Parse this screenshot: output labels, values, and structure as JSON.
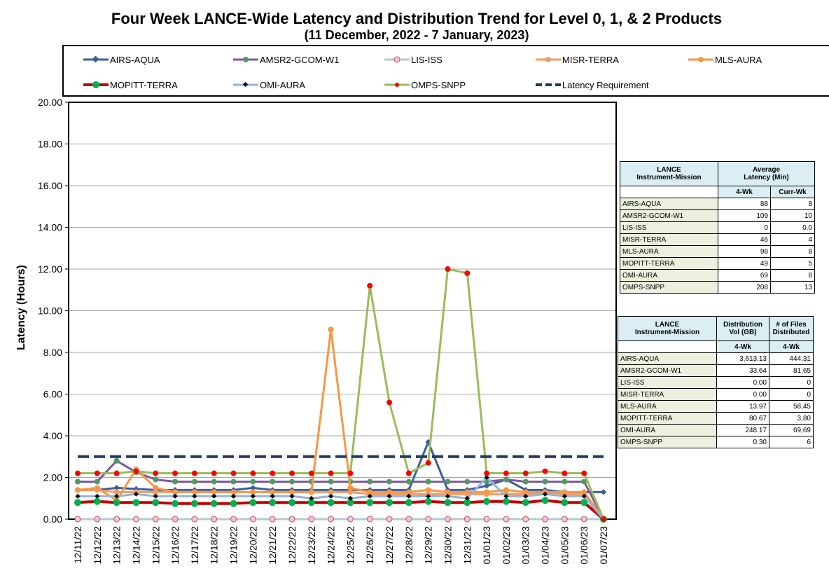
{
  "title": "Four Week LANCE-Wide Latency and Distribution Trend for Level 0, 1, & 2 Products",
  "subtitle": "(11  December,  2022  -  7  January, 2023)",
  "legend": [
    {
      "name": "AIRS-AQUA",
      "color": "#3a5f9a",
      "marker": "diamond"
    },
    {
      "name": "AMSR2-GCOM-W1",
      "color": "#7f58a2",
      "marker": "circle"
    },
    {
      "name": "LIS-ISS",
      "color": "#b3c7e6",
      "marker": "circle-pink"
    },
    {
      "name": "MISR-TERRA",
      "color": "#f49b5e",
      "marker": "circle"
    },
    {
      "name": "MLS-AURA",
      "color": "#f79646",
      "marker": "circle"
    },
    {
      "name": "MOPITT-TERRA",
      "color": "#c00000",
      "marker": "circle-green"
    },
    {
      "name": "OMI-AURA",
      "color": "#95b3d7",
      "marker": "diamond-black"
    },
    {
      "name": "OMPS-SNPP",
      "color": "#9bbb59",
      "marker": "dot-red"
    },
    {
      "name": "Latency Requirement",
      "color": "#1f3864",
      "marker": "dash"
    }
  ],
  "chart_data": {
    "type": "line",
    "title": "Four Week LANCE-Wide Latency and Distribution Trend for Level 0, 1, & 2 Products",
    "ylabel": "Latency (Hours)",
    "ylim": [
      0,
      20
    ],
    "yticks": [
      "0.00",
      "2.00",
      "4.00",
      "6.00",
      "8.00",
      "10.00",
      "12.00",
      "14.00",
      "16.00",
      "18.00",
      "20.00"
    ],
    "categories": [
      "12/11/22",
      "12/12/22",
      "12/13/22",
      "12/14/22",
      "12/15/22",
      "12/16/22",
      "12/17/22",
      "12/18/22",
      "12/19/22",
      "12/20/22",
      "12/21/22",
      "12/22/22",
      "12/23/22",
      "12/24/22",
      "12/25/22",
      "12/26/22",
      "12/27/22",
      "12/28/22",
      "12/29/22",
      "12/30/22",
      "12/31/22",
      "01/01/23",
      "01/02/23",
      "01/03/23",
      "01/04/23",
      "01/05/23",
      "01/06/23",
      "01/07/23"
    ],
    "series": [
      {
        "name": "AIRS-AQUA",
        "color": "#3a5f9a",
        "width": 3,
        "marker": "diamond",
        "values": [
          1.4,
          1.4,
          1.5,
          1.45,
          1.4,
          1.4,
          1.4,
          1.4,
          1.4,
          1.5,
          1.4,
          1.4,
          1.4,
          1.4,
          1.4,
          1.4,
          1.4,
          1.4,
          3.7,
          1.4,
          1.4,
          1.6,
          1.9,
          1.4,
          1.4,
          1.3,
          1.3,
          1.3
        ]
      },
      {
        "name": "AMSR2-GCOM-W1",
        "color": "#7f58a2",
        "width": 3,
        "marker": "circle",
        "values": [
          1.8,
          1.8,
          2.8,
          2.25,
          1.9,
          1.8,
          1.8,
          1.8,
          1.8,
          1.8,
          1.8,
          1.8,
          1.8,
          1.8,
          1.8,
          1.8,
          1.8,
          1.8,
          1.8,
          1.8,
          1.8,
          1.8,
          1.9,
          1.8,
          1.8,
          1.8,
          1.8,
          0.0
        ]
      },
      {
        "name": "LIS-ISS",
        "color": "#b3c7e6",
        "width": 3,
        "marker": "circle-pink",
        "values": [
          0,
          0,
          0,
          0,
          0,
          0,
          0,
          0,
          0,
          0,
          0,
          0,
          0,
          0,
          0,
          0,
          0,
          0,
          0,
          0,
          0,
          0,
          0,
          0,
          0,
          0,
          0,
          0
        ]
      },
      {
        "name": "MISR-TERRA",
        "color": "#f49b5e",
        "width": 3,
        "marker": "circle",
        "values": [
          1.4,
          1.4,
          1.3,
          1.3,
          1.3,
          1.3,
          1.3,
          1.3,
          1.3,
          1.3,
          1.3,
          1.3,
          1.3,
          1.3,
          1.3,
          1.2,
          1.2,
          1.2,
          1.2,
          1.2,
          1.2,
          1.2,
          1.2,
          1.2,
          1.3,
          1.2,
          1.2,
          0.0
        ]
      },
      {
        "name": "MLS-AURA",
        "color": "#f79646",
        "width": 3,
        "marker": "circle",
        "values": [
          1.4,
          1.5,
          0.9,
          2.4,
          1.5,
          1.3,
          1.3,
          1.3,
          1.3,
          1.3,
          1.3,
          1.3,
          1.3,
          9.1,
          1.5,
          1.3,
          1.3,
          1.3,
          1.4,
          1.3,
          1.3,
          1.3,
          1.4,
          1.3,
          1.3,
          1.3,
          1.3,
          0.0
        ]
      },
      {
        "name": "MOPITT-TERRA",
        "color": "#c00000",
        "width": 4,
        "marker": "circle-green",
        "values": [
          0.8,
          0.85,
          0.8,
          0.8,
          0.8,
          0.75,
          0.75,
          0.75,
          0.75,
          0.8,
          0.8,
          0.8,
          0.8,
          0.8,
          0.8,
          0.8,
          0.8,
          0.8,
          0.85,
          0.8,
          0.8,
          0.85,
          0.85,
          0.8,
          0.9,
          0.8,
          0.8,
          0.0
        ]
      },
      {
        "name": "OMI-AURA",
        "color": "#95b3d7",
        "width": 3,
        "marker": "diamond-black",
        "values": [
          1.1,
          1.1,
          1.1,
          1.2,
          1.1,
          1.1,
          1.1,
          1.1,
          1.1,
          1.1,
          1.1,
          1.1,
          1.0,
          1.1,
          1.0,
          1.1,
          1.1,
          1.1,
          1.1,
          1.1,
          1.0,
          2.0,
          1.1,
          1.1,
          1.2,
          1.1,
          1.1,
          0.0
        ]
      },
      {
        "name": "OMPS-SNPP",
        "color": "#9bbb59",
        "width": 3,
        "marker": "dot-red",
        "values": [
          2.2,
          2.2,
          2.2,
          2.3,
          2.2,
          2.2,
          2.2,
          2.2,
          2.2,
          2.2,
          2.2,
          2.2,
          2.2,
          2.2,
          2.2,
          11.2,
          5.6,
          2.2,
          2.7,
          12.0,
          11.8,
          2.2,
          2.2,
          2.2,
          2.3,
          2.2,
          2.2,
          0.0
        ]
      },
      {
        "name": "Latency Requirement",
        "color": "#1f3864",
        "width": 4,
        "marker": "dash",
        "values": [
          3,
          3,
          3,
          3,
          3,
          3,
          3,
          3,
          3,
          3,
          3,
          3,
          3,
          3,
          3,
          3,
          3,
          3,
          3,
          3,
          3,
          3,
          3,
          3,
          3,
          3,
          3,
          3
        ]
      }
    ]
  },
  "table1": {
    "h1": "LANCE\nInstrument-Mission",
    "h2": "Average\nLatency (Min)",
    "sub1": "4-Wk",
    "sub2": "Curr-Wk",
    "rows": [
      {
        "name": "AIRS-AQUA",
        "a": "88",
        "b": "8"
      },
      {
        "name": "AMSR2-GCOM-W1",
        "a": "109",
        "b": "10"
      },
      {
        "name": "LIS-ISS",
        "a": "0",
        "b": "0.0"
      },
      {
        "name": "MISR-TERRA",
        "a": "46",
        "b": "4"
      },
      {
        "name": "MLS-AURA",
        "a": "98",
        "b": "8"
      },
      {
        "name": "MOPITT-TERRA",
        "a": "49",
        "b": "5"
      },
      {
        "name": "OMI-AURA",
        "a": "69",
        "b": "8"
      },
      {
        "name": "OMPS-SNPP",
        "a": "208",
        "b": "13"
      }
    ]
  },
  "table2": {
    "h1": "LANCE\nInstrument-Mission",
    "h2": "Distribution\nVol (GB)",
    "h3": "# of Files\nDistributed",
    "sub1": "4-Wk",
    "sub2": "4-Wk",
    "rows": [
      {
        "name": "AIRS-AQUA",
        "a": "3,613.13",
        "b": "444,31"
      },
      {
        "name": "AMSR2-GCOM-W1",
        "a": "33.64",
        "b": "81,65"
      },
      {
        "name": "LIS-ISS",
        "a": "0.00",
        "b": "0"
      },
      {
        "name": "MISR-TERRA",
        "a": "0.00",
        "b": "0"
      },
      {
        "name": "MLS-AURA",
        "a": "13.97",
        "b": "58,45"
      },
      {
        "name": "MOPITT-TERRA",
        "a": "80.67",
        "b": "3,80"
      },
      {
        "name": "OMI-AURA",
        "a": "248.17",
        "b": "69,69"
      },
      {
        "name": "OMPS-SNPP",
        "a": "0.30",
        "b": "6"
      }
    ]
  }
}
